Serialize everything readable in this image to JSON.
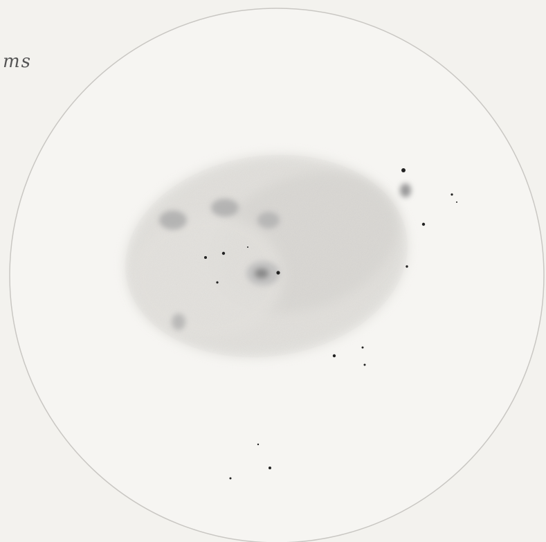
{
  "signature": "ms"
}
